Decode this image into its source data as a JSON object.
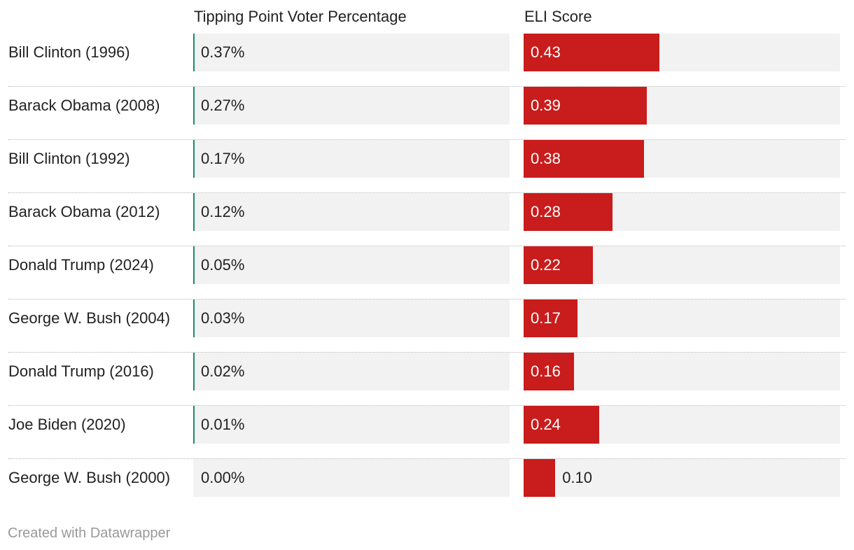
{
  "chart_data": {
    "type": "table",
    "columns": [
      "Tipping Point Voter Percentage",
      "ELI Score"
    ],
    "rows": [
      {
        "label": "Bill Clinton (1996)",
        "tipping_point_pct": 0.37,
        "tipping_point_label": "0.37%",
        "eli": 0.43,
        "eli_label": "0.43"
      },
      {
        "label": "Barack Obama (2008)",
        "tipping_point_pct": 0.27,
        "tipping_point_label": "0.27%",
        "eli": 0.39,
        "eli_label": "0.39"
      },
      {
        "label": "Bill Clinton (1992)",
        "tipping_point_pct": 0.17,
        "tipping_point_label": "0.17%",
        "eli": 0.38,
        "eli_label": "0.38"
      },
      {
        "label": "Barack Obama (2012)",
        "tipping_point_pct": 0.12,
        "tipping_point_label": "0.12%",
        "eli": 0.28,
        "eli_label": "0.28"
      },
      {
        "label": "Donald Trump (2024)",
        "tipping_point_pct": 0.05,
        "tipping_point_label": "0.05%",
        "eli": 0.22,
        "eli_label": "0.22"
      },
      {
        "label": "George W. Bush (2004)",
        "tipping_point_pct": 0.03,
        "tipping_point_label": "0.03%",
        "eli": 0.17,
        "eli_label": "0.17"
      },
      {
        "label": "Donald Trump (2016)",
        "tipping_point_pct": 0.02,
        "tipping_point_label": "0.02%",
        "eli": 0.16,
        "eli_label": "0.16"
      },
      {
        "label": "Joe Biden (2020)",
        "tipping_point_pct": 0.01,
        "tipping_point_label": "0.01%",
        "eli": 0.24,
        "eli_label": "0.24"
      },
      {
        "label": "George W. Bush (2000)",
        "tipping_point_pct": 0.0,
        "tipping_point_label": "0.00%",
        "eli": 0.1,
        "eli_label": "0.10"
      }
    ],
    "tipping_point_max": 100,
    "eli_max": 1.0
  },
  "headers": {
    "tipping_point": "Tipping Point Voter Percentage",
    "eli": "ELI Score"
  },
  "footer": "Created with Datawrapper",
  "colors": {
    "tipping_point_bar": "#1a8a6e",
    "eli_bar": "#c91c1c",
    "cell_background": "#f2f2f2"
  }
}
